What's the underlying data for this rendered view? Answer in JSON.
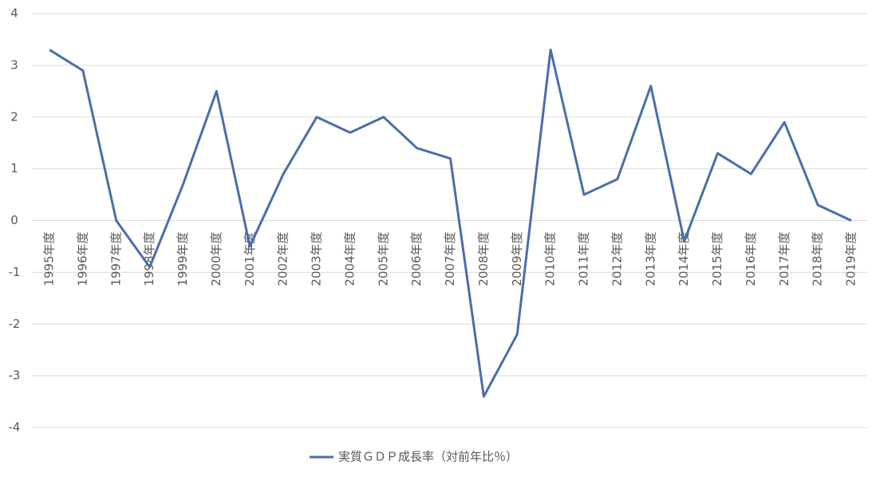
{
  "chart_data": {
    "type": "line",
    "categories": [
      "1995年度",
      "1996年度",
      "1997年度",
      "1998年度",
      "1999年度",
      "2000年度",
      "2001年度",
      "2002年度",
      "2003年度",
      "2004年度",
      "2005年度",
      "2006年度",
      "2007年度",
      "2008年度",
      "2009年度",
      "2010年度",
      "2011年度",
      "2012年度",
      "2013年度",
      "2014年度",
      "2015年度",
      "2016年度",
      "2017年度",
      "2018年度",
      "2019年度"
    ],
    "series": [
      {
        "name": "実質ＧＤＰ成長率（対前年比％）",
        "color": "#4a6ea9",
        "values": [
          3.3,
          2.9,
          0.0,
          -0.9,
          0.7,
          2.5,
          -0.5,
          0.9,
          2.0,
          1.7,
          2.0,
          1.4,
          1.2,
          -3.4,
          -2.2,
          3.3,
          0.5,
          0.8,
          2.6,
          -0.4,
          1.3,
          0.9,
          1.9,
          0.3,
          0.0
        ]
      }
    ],
    "ylim": [
      -4,
      4
    ],
    "yticks": [
      -4,
      -3,
      -2,
      -1,
      0,
      1,
      2,
      3,
      4
    ],
    "grid": true,
    "legend": "bottom"
  }
}
